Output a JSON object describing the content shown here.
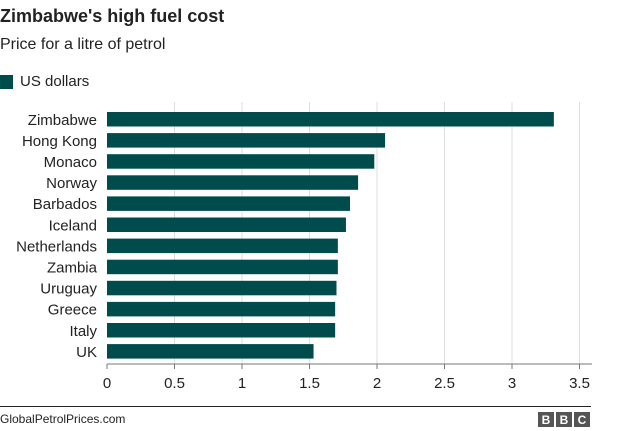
{
  "header": {
    "title": "Zimbabwe's high fuel cost",
    "subtitle": "Price for a litre of petrol"
  },
  "legend": {
    "label": "US dollars"
  },
  "footer": {
    "source": "GlobalPetrolPrices.com",
    "logo_letters": [
      "B",
      "B",
      "C"
    ]
  },
  "colors": {
    "bar": "#004c4c",
    "grid": "#dddddd",
    "axis": "#777777",
    "text": "#222222",
    "logo": "#555555"
  },
  "chart_data": {
    "type": "bar",
    "orientation": "horizontal",
    "title": "Zimbabwe's high fuel cost",
    "subtitle": "Price for a litre of petrol",
    "categories": [
      "Zimbabwe",
      "Hong Kong",
      "Monaco",
      "Norway",
      "Barbados",
      "Iceland",
      "Netherlands",
      "Zambia",
      "Uruguay",
      "Greece",
      "Italy",
      "UK"
    ],
    "series": [
      {
        "name": "US dollars",
        "values": [
          3.31,
          2.06,
          1.98,
          1.86,
          1.8,
          1.77,
          1.71,
          1.71,
          1.7,
          1.69,
          1.69,
          1.53
        ]
      }
    ],
    "xlim": [
      0,
      3.5
    ],
    "xticks": [
      0,
      0.5,
      1,
      1.5,
      2,
      2.5,
      3,
      3.5
    ],
    "xtick_labels": [
      "0",
      "0.5",
      "1",
      "1.5",
      "2",
      "2.5",
      "3",
      "3.5"
    ],
    "grid": true,
    "legend_position": "top-left"
  }
}
